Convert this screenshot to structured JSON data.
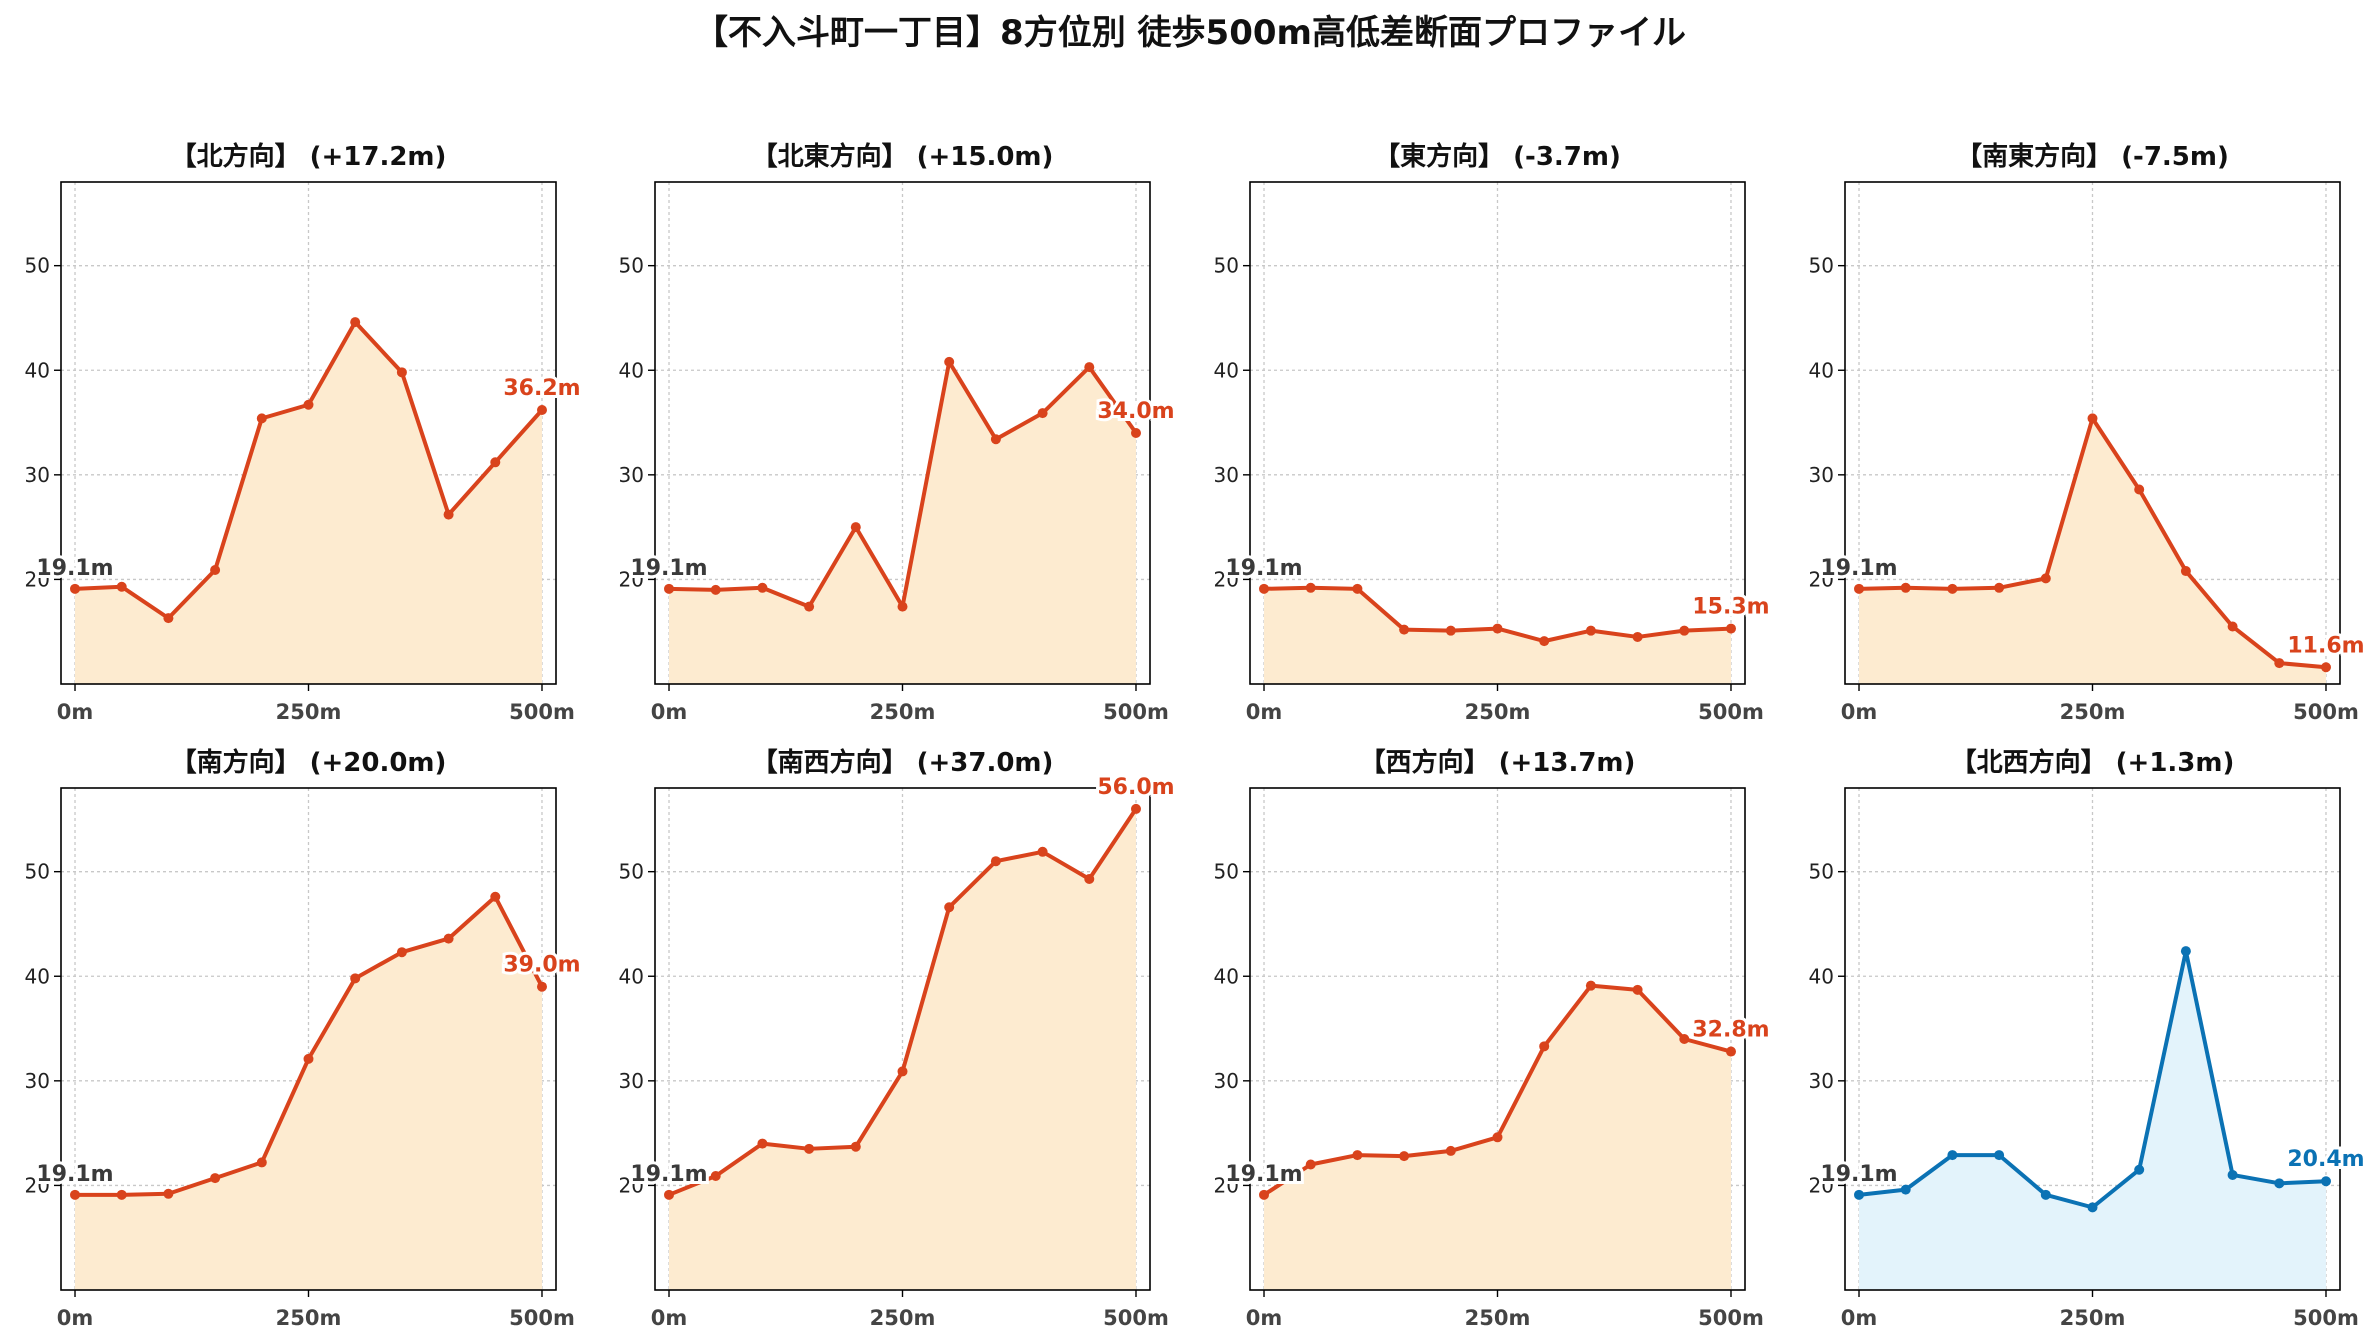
{
  "title": "【不入斗町一丁目】8方位別 徒歩500m高低差断面プロファイル",
  "colors": {
    "up_line": "#d9431c",
    "up_fill": "#fdebd0",
    "down_line": "#0b72b4",
    "down_fill": "#e3f3fb",
    "start_label": "#3a3a3a",
    "grid": "#c8c8c8",
    "axis": "#000000"
  },
  "chart_data": [
    {
      "type": "area",
      "title": "【北方向】 (+17.2m)",
      "x": [
        0,
        50,
        100,
        150,
        200,
        250,
        300,
        350,
        400,
        450,
        500
      ],
      "y": [
        19.1,
        19.3,
        16.3,
        20.9,
        35.4,
        36.7,
        44.6,
        39.8,
        26.2,
        31.2,
        36.2
      ],
      "start_label": "19.1m",
      "end_label": "36.2m",
      "series_color": "up",
      "xticks": [
        "0m",
        "250m",
        "500m"
      ],
      "yticks": [
        "20",
        "30",
        "40",
        "50"
      ],
      "xlim": [
        -15,
        515
      ],
      "ylim": [
        10,
        58
      ],
      "grid": true
    },
    {
      "type": "area",
      "title": "【北東方向】 (+15.0m)",
      "x": [
        0,
        50,
        100,
        150,
        200,
        250,
        300,
        350,
        400,
        450,
        500
      ],
      "y": [
        19.1,
        19.0,
        19.2,
        17.4,
        25.0,
        17.4,
        40.8,
        33.4,
        35.9,
        40.3,
        34.0
      ],
      "start_label": "19.1m",
      "end_label": "34.0m",
      "series_color": "up",
      "xticks": [
        "0m",
        "250m",
        "500m"
      ],
      "yticks": [
        "20",
        "30",
        "40",
        "50"
      ],
      "xlim": [
        -15,
        515
      ],
      "ylim": [
        10,
        58
      ],
      "grid": true
    },
    {
      "type": "area",
      "title": "【東方向】 (-3.7m)",
      "x": [
        0,
        50,
        100,
        150,
        200,
        250,
        300,
        350,
        400,
        450,
        500
      ],
      "y": [
        19.1,
        19.2,
        19.1,
        15.2,
        15.1,
        15.3,
        14.1,
        15.1,
        14.5,
        15.1,
        15.3
      ],
      "start_label": "19.1m",
      "end_label": "15.3m",
      "series_color": "up",
      "xticks": [
        "0m",
        "250m",
        "500m"
      ],
      "yticks": [
        "20",
        "30",
        "40",
        "50"
      ],
      "xlim": [
        -15,
        515
      ],
      "ylim": [
        10,
        58
      ],
      "grid": true
    },
    {
      "type": "area",
      "title": "【南東方向】 (-7.5m)",
      "x": [
        0,
        50,
        100,
        150,
        200,
        250,
        300,
        350,
        400,
        450,
        500
      ],
      "y": [
        19.1,
        19.2,
        19.1,
        19.2,
        20.1,
        35.4,
        28.6,
        20.8,
        15.5,
        12.0,
        11.6
      ],
      "start_label": "19.1m",
      "end_label": "11.6m",
      "series_color": "up",
      "xticks": [
        "0m",
        "250m",
        "500m"
      ],
      "yticks": [
        "20",
        "30",
        "40",
        "50"
      ],
      "xlim": [
        -15,
        515
      ],
      "ylim": [
        10,
        58
      ],
      "grid": true
    },
    {
      "type": "area",
      "title": "【南方向】 (+20.0m)",
      "x": [
        0,
        50,
        100,
        150,
        200,
        250,
        300,
        350,
        400,
        450,
        500
      ],
      "y": [
        19.1,
        19.1,
        19.2,
        20.7,
        22.2,
        32.1,
        39.8,
        42.3,
        43.6,
        47.6,
        39.0
      ],
      "start_label": "19.1m",
      "end_label": "39.0m",
      "series_color": "up",
      "xticks": [
        "0m",
        "250m",
        "500m"
      ],
      "yticks": [
        "20",
        "30",
        "40",
        "50"
      ],
      "xlim": [
        -15,
        515
      ],
      "ylim": [
        10,
        58
      ],
      "grid": true
    },
    {
      "type": "area",
      "title": "【南西方向】 (+37.0m)",
      "x": [
        0,
        50,
        100,
        150,
        200,
        250,
        300,
        350,
        400,
        450,
        500
      ],
      "y": [
        19.1,
        20.9,
        24.0,
        23.5,
        23.7,
        30.9,
        46.6,
        51.0,
        51.9,
        49.3,
        56.0
      ],
      "start_label": "19.1m",
      "end_label": "56.0m",
      "series_color": "up",
      "xticks": [
        "0m",
        "250m",
        "500m"
      ],
      "yticks": [
        "20",
        "30",
        "40",
        "50"
      ],
      "xlim": [
        -15,
        515
      ],
      "ylim": [
        10,
        58
      ],
      "grid": true
    },
    {
      "type": "area",
      "title": "【西方向】 (+13.7m)",
      "x": [
        0,
        50,
        100,
        150,
        200,
        250,
        300,
        350,
        400,
        450,
        500
      ],
      "y": [
        19.1,
        22.0,
        22.9,
        22.8,
        23.3,
        24.6,
        33.3,
        39.1,
        38.7,
        34.0,
        32.8
      ],
      "start_label": "19.1m",
      "end_label": "32.8m",
      "series_color": "up",
      "xticks": [
        "0m",
        "250m",
        "500m"
      ],
      "yticks": [
        "20",
        "30",
        "40",
        "50"
      ],
      "xlim": [
        -15,
        515
      ],
      "ylim": [
        10,
        58
      ],
      "grid": true
    },
    {
      "type": "area",
      "title": "【北西方向】 (+1.3m)",
      "x": [
        0,
        50,
        100,
        150,
        200,
        250,
        300,
        350,
        400,
        450,
        500
      ],
      "y": [
        19.1,
        19.6,
        22.9,
        22.9,
        19.1,
        17.9,
        21.5,
        42.4,
        21.0,
        20.2,
        20.4
      ],
      "start_label": "19.1m",
      "end_label": "20.4m",
      "series_color": "down",
      "xticks": [
        "0m",
        "250m",
        "500m"
      ],
      "yticks": [
        "20",
        "30",
        "40",
        "50"
      ],
      "xlim": [
        -15,
        515
      ],
      "ylim": [
        10,
        58
      ],
      "grid": true
    }
  ]
}
